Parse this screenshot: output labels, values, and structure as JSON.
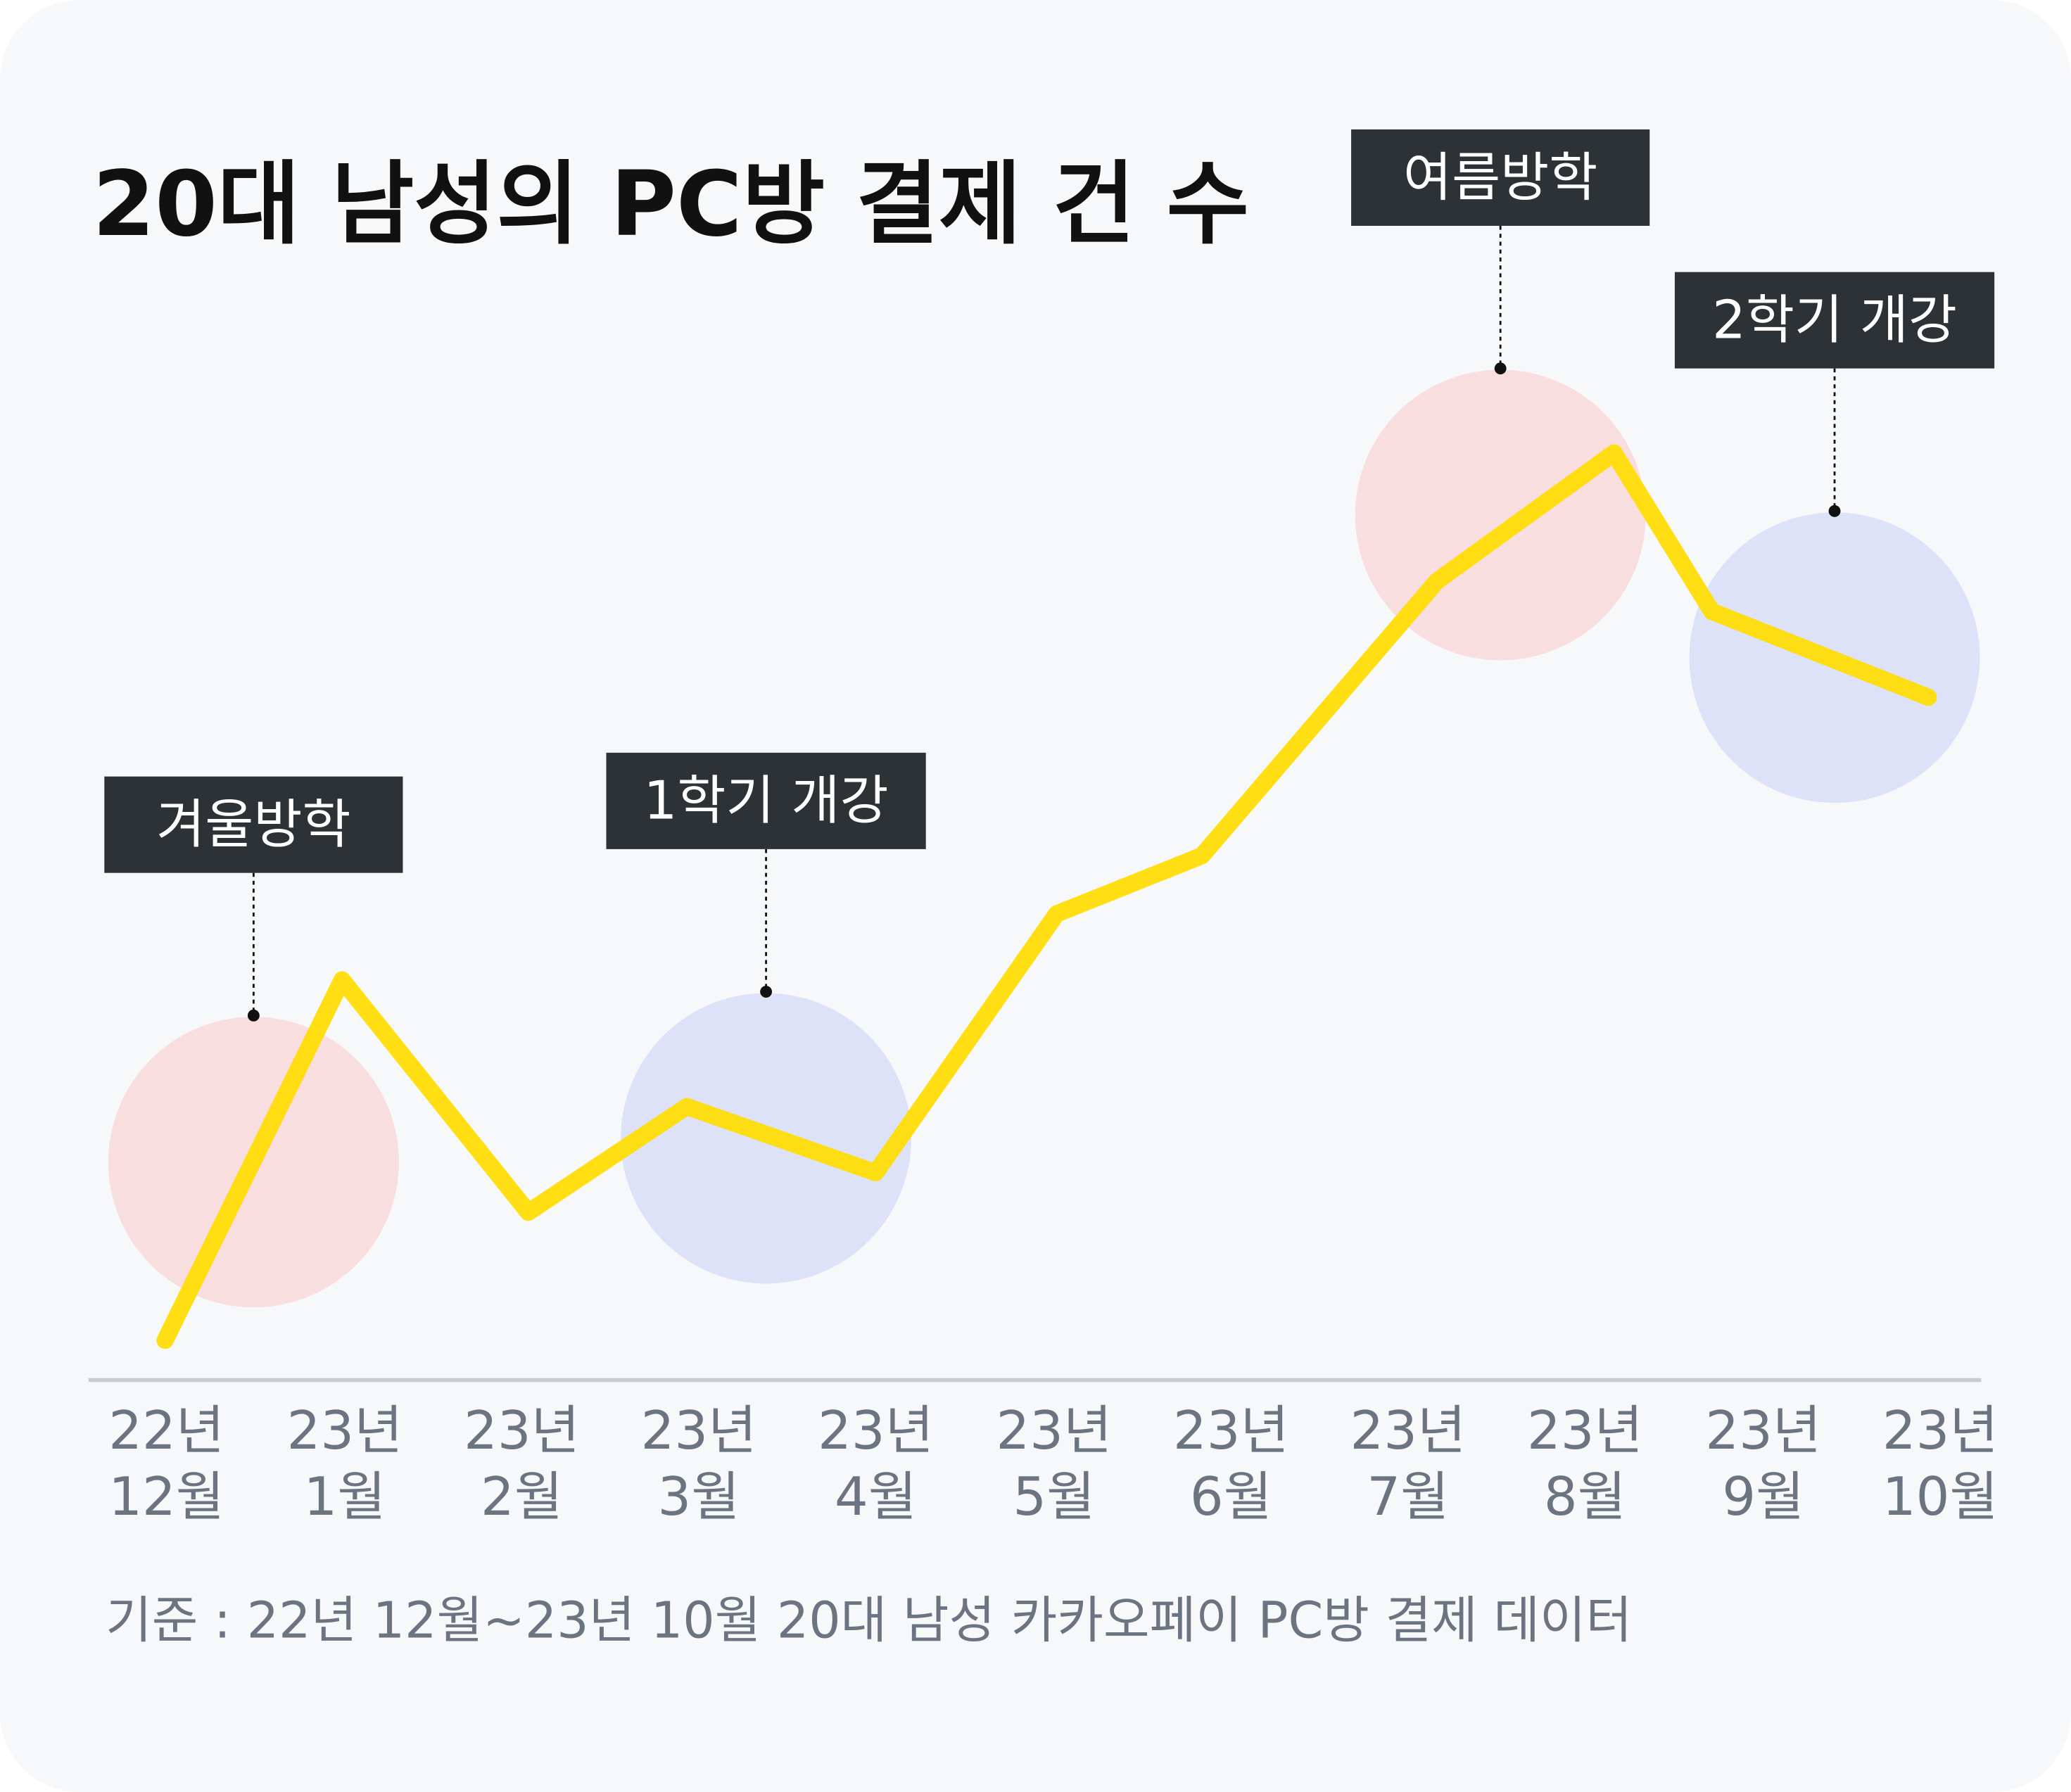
{
  "chart_data": {
    "type": "line",
    "title": "20대 남성의 PC방 결제 건 수",
    "categories": [
      [
        "22년",
        "12월"
      ],
      [
        "23년",
        "1월"
      ],
      [
        "23년",
        "2월"
      ],
      [
        "23년",
        "3월"
      ],
      [
        "23년",
        "4월"
      ],
      [
        "23년",
        "5월"
      ],
      [
        "23년",
        "6월"
      ],
      [
        "23년",
        "7월"
      ],
      [
        "23년",
        "8월"
      ],
      [
        "23년",
        "9월"
      ],
      [
        "23년",
        "10월"
      ]
    ],
    "values": [
      30,
      303,
      127,
      207,
      157,
      353,
      397,
      605,
      702,
      582,
      517
    ],
    "line_color": "#FFDC00",
    "y_axis_shown": false,
    "grid": false,
    "annotations": [
      {
        "label": "겨울방학",
        "at": 0.5,
        "level": 165,
        "color": "#F8DEDF"
      },
      {
        "label": "1학기 개강",
        "at": 3.4,
        "level": 183,
        "color": "#DEE2F8"
      },
      {
        "label": "여름방학",
        "at": 7.5,
        "level": 655,
        "color": "#F8DEDF"
      },
      {
        "label": "2학기 개강",
        "at": 9.4,
        "level": 547,
        "color": "#DEE2F8"
      }
    ],
    "footnote": "기준 : 22년 12월~23년 10월 20대 남성 카카오페이 PC방 결제 데이터"
  }
}
